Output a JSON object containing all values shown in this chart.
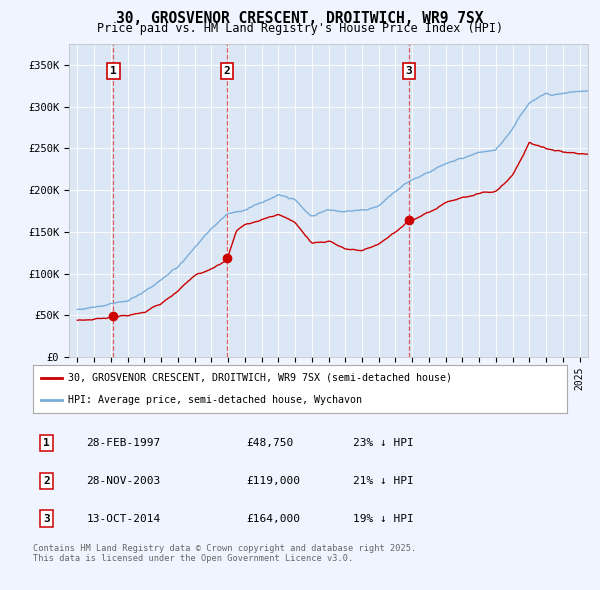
{
  "title": "30, GROSVENOR CRESCENT, DROITWICH, WR9 7SX",
  "subtitle": "Price paid vs. HM Land Registry's House Price Index (HPI)",
  "background_color": "#f0f4ff",
  "plot_bg_color": "#dce7f5",
  "ylim": [
    0,
    375000
  ],
  "yticks": [
    0,
    50000,
    100000,
    150000,
    200000,
    250000,
    300000,
    350000
  ],
  "ytick_labels": [
    "£0",
    "£50K",
    "£100K",
    "£150K",
    "£200K",
    "£250K",
    "£300K",
    "£350K"
  ],
  "xlim_start": 1994.5,
  "xlim_end": 2025.5,
  "sales": [
    {
      "year": 1997.15,
      "price": 48750,
      "label": "1"
    },
    {
      "year": 2003.92,
      "price": 119000,
      "label": "2"
    },
    {
      "year": 2014.79,
      "price": 164000,
      "label": "3"
    }
  ],
  "legend_property_label": "30, GROSVENOR CRESCENT, DROITWICH, WR9 7SX (semi-detached house)",
  "legend_hpi_label": "HPI: Average price, semi-detached house, Wychavon",
  "table": [
    {
      "num": "1",
      "date": "28-FEB-1997",
      "price": "£48,750",
      "hpi": "23% ↓ HPI"
    },
    {
      "num": "2",
      "date": "28-NOV-2003",
      "price": "£119,000",
      "hpi": "21% ↓ HPI"
    },
    {
      "num": "3",
      "date": "13-OCT-2014",
      "price": "£164,000",
      "hpi": "19% ↓ HPI"
    }
  ],
  "footer": "Contains HM Land Registry data © Crown copyright and database right 2025.\nThis data is licensed under the Open Government Licence v3.0.",
  "property_line_color": "#cc0000",
  "hpi_line_color": "#7aadda",
  "vline_color": "#dd4444",
  "marker_color": "#cc0000",
  "box_color": "#cc0000"
}
